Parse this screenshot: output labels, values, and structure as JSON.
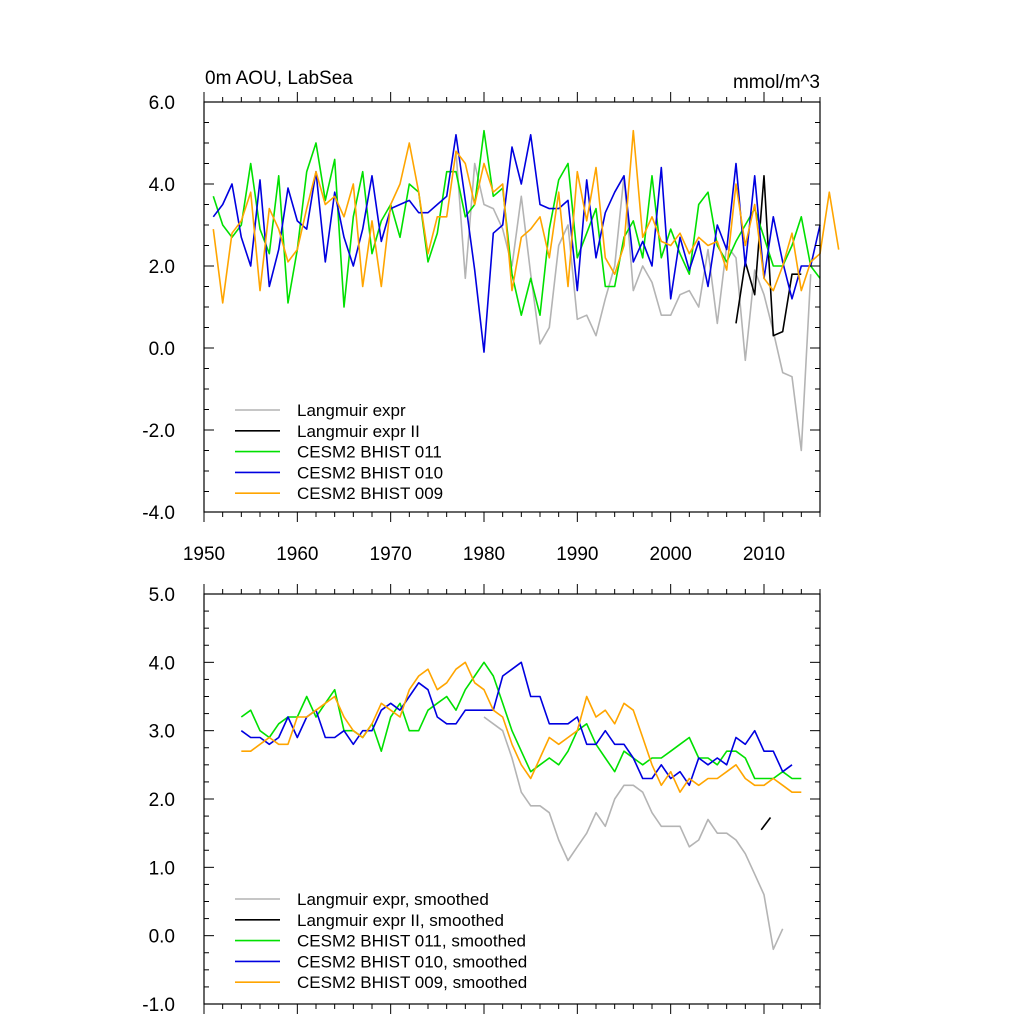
{
  "chart_data": [
    {
      "type": "line",
      "title_left": "0m AOU, LabSea",
      "title_right": "mmol/m^3",
      "xlim": [
        1950,
        2016
      ],
      "ylim": [
        -4,
        6
      ],
      "yticks": [
        "6.0",
        "4.0",
        "2.0",
        "0.0",
        "-2.0",
        "-4.0"
      ],
      "ytick_values": [
        6,
        4,
        2,
        0,
        -2,
        -4
      ],
      "xticks": [
        "1950",
        "1960",
        "1970",
        "1980",
        "1990",
        "2000",
        "2010"
      ],
      "xtick_values": [
        1950,
        1960,
        1970,
        1980,
        1990,
        2000,
        2010
      ],
      "grid": false,
      "legend_position": "bottom-left",
      "series": [
        {
          "name": "Langmuir expr",
          "color": "#b4b4b4",
          "x_start": 1977,
          "values": [
            4.8,
            1.7,
            4.5,
            3.5,
            3.4,
            2.9,
            2.0,
            3.7,
            1.8,
            0.1,
            0.5,
            2.5,
            3.0,
            0.7,
            0.8,
            0.3,
            1.2,
            2.0,
            4.2,
            1.4,
            2.0,
            1.6,
            0.8,
            0.8,
            1.3,
            1.4,
            1.0,
            2.4,
            0.6,
            2.5,
            2.2,
            -0.3,
            1.9,
            1.3,
            0.4,
            -0.6,
            -0.7,
            -2.5,
            1.8
          ]
        },
        {
          "name": "Langmuir expr II",
          "color": "#000000",
          "x_start": 2007,
          "values": [
            0.6,
            2.1,
            1.3,
            4.2,
            0.3,
            0.4,
            1.8,
            1.8
          ]
        },
        {
          "name": "CESM2 BHIST 011",
          "color": "#00e000",
          "x_start": 1951,
          "values": [
            3.7,
            3.0,
            2.7,
            3.0,
            4.5,
            2.9,
            2.3,
            4.2,
            1.1,
            2.4,
            4.3,
            5.0,
            3.6,
            4.6,
            1.0,
            3.2,
            4.3,
            2.3,
            3.1,
            3.5,
            2.7,
            4.0,
            3.8,
            2.1,
            2.8,
            4.3,
            4.3,
            3.2,
            3.5,
            5.3,
            3.7,
            3.9,
            1.8,
            0.8,
            1.7,
            0.8,
            2.9,
            4.1,
            4.5,
            2.2,
            2.8,
            3.4,
            1.5,
            1.5,
            2.7,
            3.1,
            2.2,
            4.2,
            2.2,
            2.9,
            2.3,
            1.8,
            3.5,
            3.8,
            2.5,
            2.1,
            2.6,
            3.0,
            3.4,
            2.7,
            2.0,
            2.0,
            2.5,
            3.2,
            2.0,
            1.7
          ]
        },
        {
          "name": "CESM2 BHIST 010",
          "color": "#0000e0",
          "x_start": 1951,
          "values": [
            3.2,
            3.5,
            4.0,
            2.7,
            2.0,
            4.1,
            1.5,
            2.4,
            3.9,
            3.1,
            2.9,
            4.3,
            2.1,
            3.8,
            2.7,
            2.0,
            2.9,
            4.2,
            2.6,
            3.4,
            3.5,
            3.6,
            3.3,
            3.3,
            3.5,
            3.7,
            5.2,
            3.6,
            1.9,
            -0.1,
            2.8,
            3.0,
            4.9,
            4.0,
            5.2,
            3.5,
            3.4,
            3.4,
            3.6,
            1.4,
            4.1,
            2.2,
            3.3,
            3.8,
            4.2,
            2.1,
            2.6,
            2.0,
            4.4,
            1.2,
            2.7,
            1.9,
            2.6,
            1.5,
            3.0,
            2.4,
            4.5,
            2.0,
            4.2,
            1.7,
            3.2,
            2.1,
            1.2,
            2.0,
            2.0,
            3.0
          ]
        },
        {
          "name": "CESM2 BHIST 009",
          "color": "#ffa500",
          "x_start": 1951,
          "values": [
            2.9,
            1.1,
            2.8,
            3.1,
            3.8,
            1.4,
            3.4,
            2.9,
            2.1,
            2.4,
            3.4,
            4.3,
            3.5,
            3.7,
            3.2,
            4.0,
            1.5,
            3.1,
            1.5,
            3.5,
            4.0,
            5.0,
            3.8,
            2.3,
            3.2,
            3.2,
            4.8,
            4.5,
            3.5,
            4.5,
            3.8,
            4.0,
            1.4,
            2.7,
            2.9,
            3.2,
            2.2,
            3.8,
            1.5,
            4.3,
            3.1,
            4.4,
            2.2,
            1.8,
            2.5,
            5.3,
            2.7,
            3.2,
            2.6,
            2.5,
            2.8,
            2.3,
            2.7,
            2.5,
            2.6,
            1.9,
            4.0,
            2.5,
            3.5,
            1.7,
            1.4,
            2.0,
            2.8,
            1.4,
            2.1,
            2.3,
            3.8,
            2.4
          ]
        }
      ]
    },
    {
      "type": "line",
      "xlim": [
        1950,
        2016
      ],
      "ylim": [
        -1,
        5
      ],
      "yticks": [
        "5.0",
        "4.0",
        "3.0",
        "2.0",
        "1.0",
        "0.0",
        "-1.0"
      ],
      "ytick_values": [
        5,
        4,
        3,
        2,
        1,
        0,
        -1
      ],
      "xtick_values": [
        1950,
        1960,
        1970,
        1980,
        1990,
        2000,
        2010
      ],
      "grid": false,
      "legend_position": "bottom-left",
      "series": [
        {
          "name": "Langmuir expr, smoothed",
          "color": "#b4b4b4",
          "x_start": 1980,
          "values": [
            3.2,
            3.1,
            3.0,
            2.6,
            2.1,
            1.9,
            1.9,
            1.8,
            1.4,
            1.1,
            1.3,
            1.5,
            1.8,
            1.6,
            2.0,
            2.2,
            2.2,
            2.1,
            1.8,
            1.6,
            1.6,
            1.6,
            1.3,
            1.4,
            1.7,
            1.5,
            1.5,
            1.4,
            1.2,
            0.9,
            0.6,
            -0.2,
            0.1
          ]
        },
        {
          "name": "Langmuir expr II, smoothed",
          "color": "#000000",
          "x_start": 2009.7,
          "values": [
            1.55,
            1.73
          ]
        },
        {
          "name": "CESM2 BHIST 011, smoothed",
          "color": "#00e000",
          "x_start": 1954,
          "values": [
            3.2,
            3.3,
            3.0,
            2.9,
            3.1,
            3.2,
            3.2,
            3.5,
            3.2,
            3.4,
            3.6,
            3.0,
            3.0,
            2.9,
            3.1,
            2.7,
            3.2,
            3.4,
            3.0,
            3.0,
            3.3,
            3.4,
            3.5,
            3.3,
            3.6,
            3.8,
            4.0,
            3.8,
            3.4,
            3.0,
            2.7,
            2.4,
            2.5,
            2.6,
            2.5,
            2.7,
            3.0,
            3.1,
            2.8,
            2.6,
            2.4,
            2.7,
            2.6,
            2.5,
            2.6,
            2.6,
            2.7,
            2.8,
            2.9,
            2.6,
            2.6,
            2.5,
            2.7,
            2.7,
            2.6,
            2.3,
            2.3,
            2.3,
            2.4,
            2.3,
            2.3
          ]
        },
        {
          "name": "CESM2 BHIST 010, smoothed",
          "color": "#0000e0",
          "x_start": 1954,
          "values": [
            3.0,
            2.9,
            2.9,
            2.8,
            2.9,
            3.2,
            2.9,
            3.2,
            3.3,
            2.9,
            2.9,
            3.0,
            2.8,
            3.0,
            3.0,
            3.3,
            3.4,
            3.3,
            3.5,
            3.7,
            3.6,
            3.2,
            3.1,
            3.1,
            3.3,
            3.3,
            3.3,
            3.3,
            3.8,
            3.9,
            4.0,
            3.5,
            3.5,
            3.1,
            3.1,
            3.1,
            3.2,
            2.8,
            2.8,
            3.0,
            2.8,
            2.8,
            2.6,
            2.3,
            2.3,
            2.5,
            2.3,
            2.4,
            2.2,
            2.6,
            2.5,
            2.6,
            2.5,
            2.9,
            2.8,
            3.0,
            2.7,
            2.7,
            2.4,
            2.5
          ]
        },
        {
          "name": "CESM2 BHIST 009, smoothed",
          "color": "#ffa500",
          "x_start": 1954,
          "values": [
            2.7,
            2.7,
            2.8,
            2.9,
            2.8,
            2.8,
            3.2,
            3.2,
            3.3,
            3.4,
            3.5,
            3.2,
            3.0,
            2.9,
            3.1,
            3.4,
            3.3,
            3.2,
            3.6,
            3.8,
            3.9,
            3.6,
            3.7,
            3.9,
            4.0,
            3.7,
            3.6,
            3.3,
            3.2,
            2.8,
            2.5,
            2.3,
            2.6,
            2.9,
            2.8,
            2.9,
            3.0,
            3.5,
            3.2,
            3.3,
            3.1,
            3.4,
            3.3,
            2.9,
            2.5,
            2.2,
            2.4,
            2.1,
            2.3,
            2.2,
            2.3,
            2.3,
            2.4,
            2.5,
            2.3,
            2.2,
            2.2,
            2.3,
            2.2,
            2.1,
            2.1
          ]
        }
      ]
    }
  ]
}
